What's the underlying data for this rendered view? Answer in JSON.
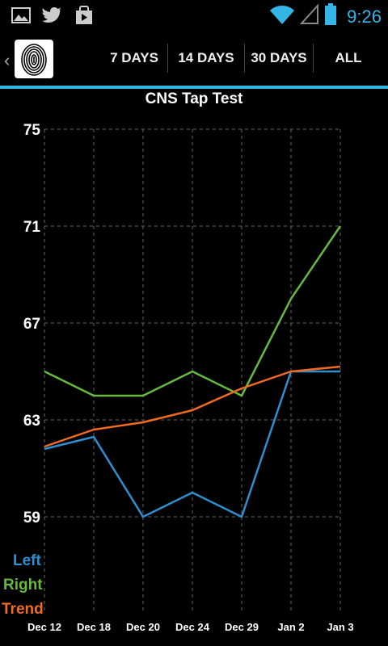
{
  "status_bar": {
    "icons": [
      "gallery-icon",
      "twitter-icon",
      "play-store-icon",
      "wifi-icon",
      "signal-icon",
      "battery-icon"
    ],
    "time": "9:26"
  },
  "action_bar": {
    "app_icon": "fingerprint-icon",
    "tabs": [
      {
        "label": "7 DAYS"
      },
      {
        "label": "14 DAYS"
      },
      {
        "label": "30 DAYS"
      },
      {
        "label": "ALL"
      }
    ]
  },
  "colors": {
    "accent": "#33b5e5",
    "left": "#2d8fcf",
    "right": "#66b93f",
    "trend": "#f06a20",
    "grid": "#666666"
  },
  "chart_data": {
    "type": "line",
    "title": "CNS Tap Test",
    "categories": [
      "Dec 12",
      "Dec 18",
      "Dec 20",
      "Dec 24",
      "Dec 29",
      "Jan 2",
      "Jan 3"
    ],
    "ylim": [
      57,
      75
    ],
    "yticks": [
      "75",
      "71",
      "67",
      "63",
      "59"
    ],
    "grid": true,
    "legend_position": "bottom-left",
    "series": [
      {
        "name": "Left",
        "values": [
          61.8,
          62.3,
          59.0,
          60.0,
          59.0,
          65.0,
          65.0
        ]
      },
      {
        "name": "Right",
        "values": [
          65.0,
          64.0,
          64.0,
          65.0,
          64.0,
          68.0,
          71.0
        ]
      },
      {
        "name": "Trend",
        "values": [
          61.9,
          62.6,
          62.9,
          63.4,
          64.3,
          65.0,
          65.2
        ]
      }
    ]
  }
}
